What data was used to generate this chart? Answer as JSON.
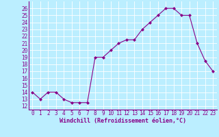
{
  "x": [
    0,
    1,
    2,
    3,
    4,
    5,
    6,
    7,
    8,
    9,
    10,
    11,
    12,
    13,
    14,
    15,
    16,
    17,
    18,
    19,
    20,
    21,
    22,
    23
  ],
  "y": [
    14,
    13,
    14,
    14,
    13,
    12.5,
    12.5,
    12.5,
    19,
    19,
    20,
    21,
    21.5,
    21.5,
    23,
    24,
    25,
    26,
    26,
    25,
    25,
    21,
    18.5,
    17
  ],
  "line_color": "#880088",
  "marker": "D",
  "marker_size": 2.0,
  "bg_color": "#bbeeff",
  "grid_color": "#aaddcc",
  "xlabel": "Windchill (Refroidissement éolien,°C)",
  "xlabel_color": "#880088",
  "tick_color": "#880088",
  "axis_color": "#880088",
  "ylim": [
    11.5,
    27
  ],
  "xlim": [
    -0.5,
    23.5
  ],
  "yticks": [
    12,
    13,
    14,
    15,
    16,
    17,
    18,
    19,
    20,
    21,
    22,
    23,
    24,
    25,
    26
  ],
  "xticks": [
    0,
    1,
    2,
    3,
    4,
    5,
    6,
    7,
    8,
    9,
    10,
    11,
    12,
    13,
    14,
    15,
    16,
    17,
    18,
    19,
    20,
    21,
    22,
    23
  ],
  "tick_fontsize": 5.5,
  "xlabel_fontsize": 6.0
}
